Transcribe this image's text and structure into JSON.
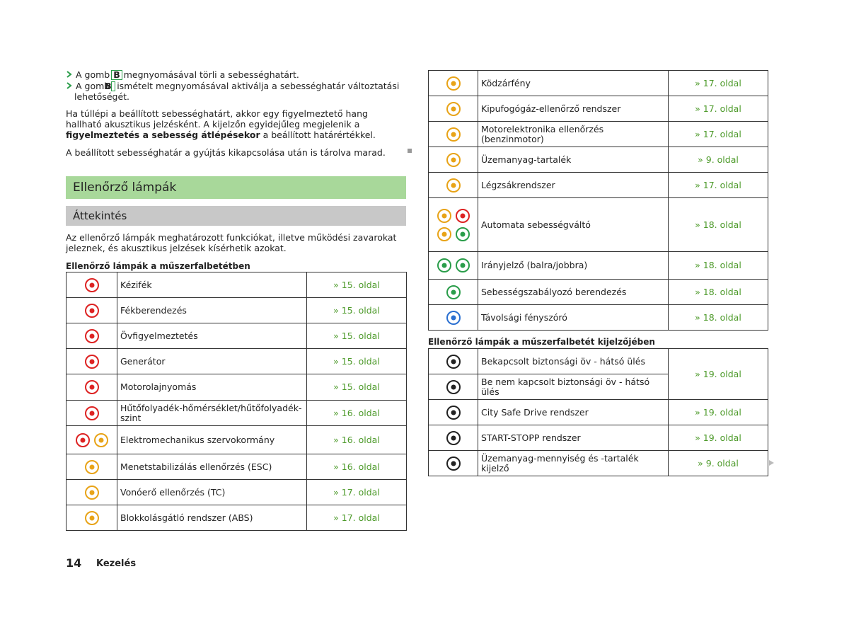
{
  "bullets": [
    {
      "prefix": "A gomb",
      "key": "B",
      "text": "megnyomásával törli a sebességhatárt."
    },
    {
      "prefix": "A gomb",
      "key": "B",
      "text": "ismételt megnyomásával aktiválja a sebességhatár változtatási lehetőségét."
    }
  ],
  "paragraph1": {
    "before": "Ha túllépi a beállított sebességhatárt, akkor egy figyelmeztető hang hallható akusztikus jelzésként. A kijelzőn egyidejűleg megjelenik a ",
    "bold": "figyelmeztetés a sebesség átlépésekor",
    "after": " a beállított határértékkel."
  },
  "paragraph2": "A beállított sebességhatár a gyújtás kikapcsolása után is tárolva marad.",
  "section_title": "Ellenőrző lámpák",
  "subsection_title": "Áttekintés",
  "intro": "Az ellenőrző lámpák meghatározott funkciókat, illetve működési zavarokat jeleznek, és akusztikus jelzések kísérhetik azokat.",
  "table1": {
    "caption": "Ellenőrző lámpák a műszerfalbetétben",
    "rows": [
      [
        "Kézifék",
        "» 15. oldal"
      ],
      [
        "Fékberendezés",
        "» 15. oldal"
      ],
      [
        "Övfigyelmeztetés",
        "» 15. oldal"
      ],
      [
        "Generátor",
        "» 15. oldal"
      ],
      [
        "Motorolajnyomás",
        "» 15. oldal"
      ],
      [
        "Hűtőfolyadék-hőmérséklet/hűtőfolyadék-szint",
        "» 16. oldal"
      ],
      [
        "Elektromechanikus szervokormány",
        "» 16. oldal"
      ],
      [
        "Menetstabilizálás ellenőrzés (ESC)",
        "» 16. oldal"
      ],
      [
        "Vonóerő ellenőrzés (TC)",
        "» 17. oldal"
      ],
      [
        "Blokkolásgátló rendszer (ABS)",
        "» 17. oldal"
      ]
    ]
  },
  "table2": {
    "rows": [
      [
        "Ködzárfény",
        "» 17. oldal"
      ],
      [
        "Kipufogógáz-ellenőrző rendszer",
        "» 17. oldal"
      ],
      [
        "Motorelektronika ellenőrzés (benzinmotor)",
        "» 17. oldal"
      ],
      [
        "Üzemanyag-tartalék",
        "» 9. oldal"
      ],
      [
        "Légzsákrendszer",
        "» 17. oldal"
      ],
      [
        "Automata sebességváltó",
        "» 18. oldal"
      ],
      [
        "Irányjelző (balra/jobbra)",
        "» 18. oldal"
      ],
      [
        "Sebességszabályozó berendezés",
        "» 18. oldal"
      ],
      [
        "Távolsági fényszóró",
        "» 18. oldal"
      ]
    ]
  },
  "table3": {
    "caption": "Ellenőrző lámpák a műszerfalbetét kijelzőjében",
    "rows": [
      [
        "Bekapcsolt biztonsági öv - hátsó ülés",
        "» 19. oldal"
      ],
      [
        "Be nem kapcsolt biztonsági öv - hátsó ülés"
      ],
      [
        "City Safe Drive rendszer",
        "» 19. oldal"
      ],
      [
        "START-STOPP rendszer",
        "» 19. oldal"
      ],
      [
        "Üzemanyag-mennyiség és -tartalék kijelző",
        "» 9. oldal"
      ]
    ]
  },
  "footer": {
    "page": "14",
    "section": "Kezelés"
  }
}
